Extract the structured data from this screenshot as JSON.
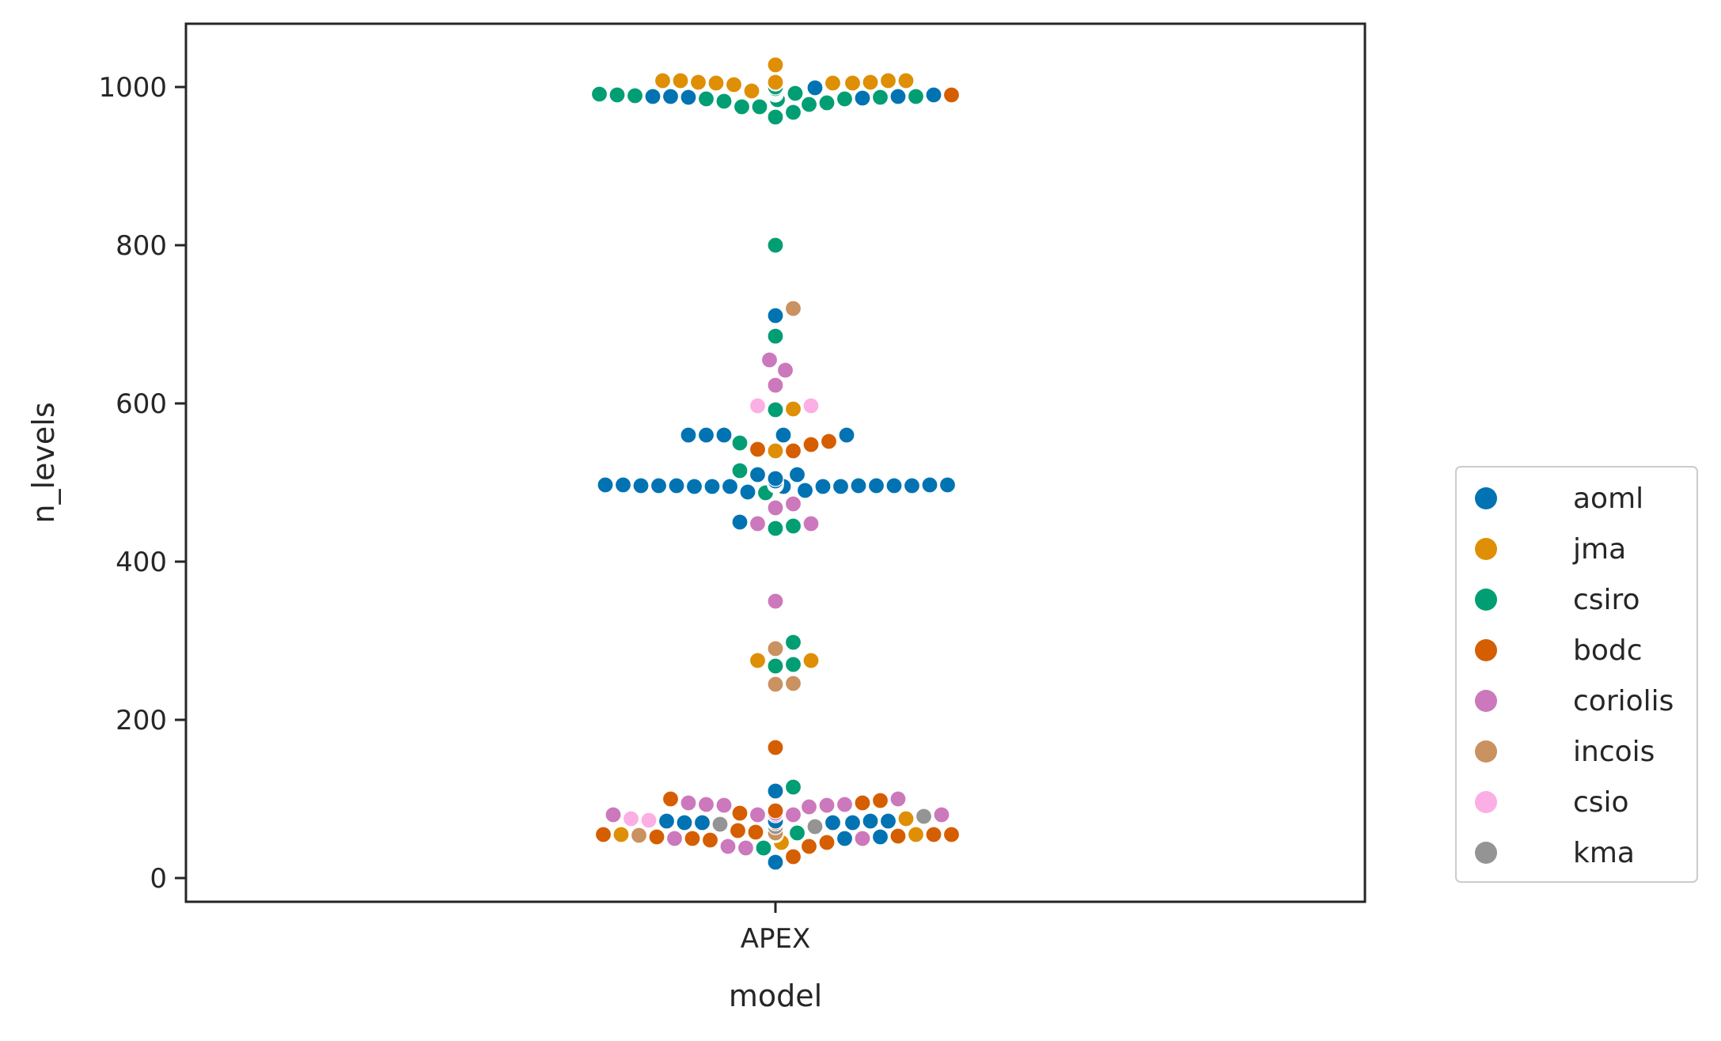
{
  "chart_data": {
    "type": "scatter",
    "subtype": "swarm",
    "xlabel": "model",
    "ylabel": "n_levels",
    "categories": [
      "APEX"
    ],
    "ylim": [
      -30,
      1080
    ],
    "yticks": [
      0,
      200,
      400,
      600,
      800,
      1000
    ],
    "grid": false,
    "legend": {
      "placement": "right-outside",
      "entries": [
        "aoml",
        "jma",
        "csiro",
        "bodc",
        "coriolis",
        "incois",
        "csio",
        "kma"
      ]
    },
    "colors": {
      "aoml": "#0173b2",
      "jma": "#de8f05",
      "csiro": "#029e73",
      "bodc": "#d55e00",
      "coriolis": "#cc78bc",
      "incois": "#ca9161",
      "csio": "#fbafe4",
      "kma": "#949494"
    },
    "series": [
      {
        "name": "aoml",
        "values": [
          1000,
          990,
          988,
          987,
          986,
          988,
          988,
          999,
          510,
          505,
          502,
          501,
          500,
          500,
          500,
          500,
          500,
          500,
          500,
          499,
          499,
          499,
          499,
          499,
          498,
          498,
          498,
          498,
          497,
          497,
          497,
          497,
          496,
          496,
          496,
          496,
          495,
          495,
          495,
          495,
          495,
          495,
          496,
          496,
          496,
          497,
          497,
          497,
          497,
          498,
          498,
          498,
          498,
          499,
          499,
          499,
          499,
          500,
          500,
          500,
          500,
          501,
          501,
          502,
          505,
          510,
          488,
          490,
          560,
          560,
          560,
          560,
          560,
          450,
          711,
          72,
          72,
          72,
          72,
          72,
          72,
          72,
          70,
          70,
          70,
          70,
          70,
          70,
          70,
          52,
          50,
          20,
          110,
          70,
          70
        ]
      },
      {
        "name": "jma",
        "values": [
          1008,
          1000,
          1006,
          1006,
          1006,
          1005,
          1005,
          1005,
          1005,
          1005,
          1005,
          1006,
          1008,
          1008,
          1028,
          995,
          995,
          995,
          995,
          995,
          995,
          995,
          995,
          995,
          995,
          995,
          995,
          1003,
          1008,
          593,
          540,
          275,
          275,
          55,
          55,
          45,
          75
        ]
      },
      {
        "name": "csiro",
        "values": [
          998,
          995,
          995,
          995,
          995,
          995,
          995,
          995,
          995,
          995,
          993,
          993,
          993,
          992,
          992,
          992,
          991,
          991,
          990,
          989,
          988,
          987,
          985,
          984,
          980,
          975,
          968,
          962,
          975,
          978,
          982,
          985,
          995,
          1000,
          995,
          992,
          992,
          992,
          993,
          993,
          994,
          994,
          995,
          995,
          995,
          997,
          800,
          685,
          592,
          550,
          515,
          487,
          445,
          442,
          298,
          270,
          268,
          57,
          115,
          70,
          38
        ]
      },
      {
        "name": "bodc",
        "values": [
          70,
          57,
          57,
          57,
          57,
          57,
          57,
          57,
          57,
          57,
          57,
          57,
          57,
          57,
          57,
          57,
          57,
          57,
          57,
          55,
          55,
          53,
          52,
          50,
          45,
          27,
          40,
          58,
          48,
          55,
          60,
          85,
          95,
          98,
          100,
          82,
          55,
          55,
          55,
          55,
          55,
          56,
          56,
          56,
          56,
          57,
          57,
          57,
          57,
          57,
          57,
          57,
          57,
          57,
          57,
          57,
          57,
          57,
          57,
          57,
          57,
          992,
          992,
          990,
          548,
          540,
          542,
          552,
          165
        ]
      },
      {
        "name": "coriolis",
        "values": [
          993,
          655,
          642,
          623,
          473,
          468,
          448,
          448,
          350,
          80,
          80,
          100,
          95,
          93,
          90,
          50,
          40,
          92,
          80,
          38,
          92,
          93,
          50,
          80,
          80,
          80,
          82
        ]
      },
      {
        "name": "incois",
        "values": [
          997,
          996,
          995,
          720,
          290,
          246,
          245,
          57,
          57,
          54,
          57
        ]
      },
      {
        "name": "csio",
        "values": [
          597,
          597,
          75,
          73
        ]
      },
      {
        "name": "kma",
        "values": [
          78,
          65,
          55,
          55,
          68,
          65
        ]
      }
    ]
  }
}
